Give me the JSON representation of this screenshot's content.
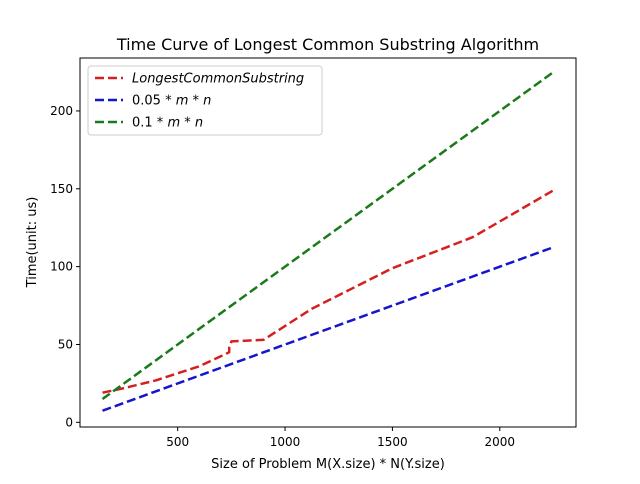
{
  "chart_data": {
    "type": "line",
    "title": "Time Curve of Longest Common Substring Algorithm",
    "xlabel": "Size of Problem M(X.size) * N(Y.size)",
    "ylabel": "Time(unit: us)",
    "xlim": [
      45,
      2355
    ],
    "ylim": [
      -3,
      234
    ],
    "xticks": [
      500,
      1000,
      1500,
      2000
    ],
    "yticks": [
      0,
      50,
      100,
      150,
      200
    ],
    "grid": false,
    "legend_position": "top-left",
    "series": [
      {
        "name": "LongestCommonSubstring",
        "color": "#d62020",
        "x": [
          150,
          250,
          400,
          600,
          740,
          740,
          750,
          900,
          1125,
          1500,
          1875,
          2250
        ],
        "y": [
          19,
          22,
          27,
          36,
          45,
          48,
          52,
          53,
          73,
          99,
          119,
          149
        ]
      },
      {
        "name": "0.05*m*n",
        "color": "#1515cc",
        "x": [
          150,
          2250
        ],
        "y": [
          7.5,
          112.5
        ]
      },
      {
        "name": "0.1*m*n",
        "color": "#1a7a1a",
        "x": [
          150,
          2250
        ],
        "y": [
          15,
          225
        ]
      }
    ],
    "legend": [
      {
        "prefix": "",
        "math": "LongestCommonSubstring"
      },
      {
        "prefix": "0.05",
        "math": "m",
        "mid": "n"
      },
      {
        "prefix": "0.1",
        "math": "m",
        "mid": "n"
      }
    ]
  }
}
